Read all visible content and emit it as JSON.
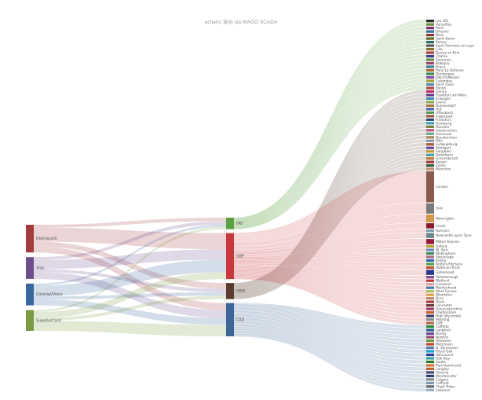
{
  "chart_data": {
    "type": "sankey",
    "title": "echarts 演示 via WAGO SCADA",
    "levels": [
      {
        "name": "source",
        "nodes": [
          {
            "name": "Distinguish",
            "color": "#a23a3e"
          },
          {
            "name": "Visa",
            "color": "#6e4d8c"
          },
          {
            "name": "Colonial/Voice",
            "color": "#39689f"
          },
          {
            "name": "SuperiorCard",
            "color": "#7c9a41"
          }
        ]
      },
      {
        "name": "currency",
        "nodes": [
          {
            "name": "FRF",
            "color": "#5aa13f"
          },
          {
            "name": "GBP",
            "color": "#c9383d"
          },
          {
            "name": "DEM",
            "color": "#5a3b2f"
          },
          {
            "name": "CAD",
            "color": "#3d6698"
          }
        ]
      }
    ],
    "links_to_currency": [
      {
        "source": "Distinguish",
        "target": "FRF",
        "value": 3
      },
      {
        "source": "Distinguish",
        "target": "GBP",
        "value": 14
      },
      {
        "source": "Distinguish",
        "target": "DEM",
        "value": 5
      },
      {
        "source": "Distinguish",
        "target": "CAD",
        "value": 6
      },
      {
        "source": "Visa",
        "target": "FRF",
        "value": 3
      },
      {
        "source": "Visa",
        "target": "GBP",
        "value": 9
      },
      {
        "source": "Visa",
        "target": "DEM",
        "value": 3
      },
      {
        "source": "Visa",
        "target": "CAD",
        "value": 7
      },
      {
        "source": "Colonial/Voice",
        "target": "FRF",
        "value": 2
      },
      {
        "source": "Colonial/Voice",
        "target": "GBP",
        "value": 11
      },
      {
        "source": "Colonial/Voice",
        "target": "DEM",
        "value": 3
      },
      {
        "source": "Colonial/Voice",
        "target": "CAD",
        "value": 6
      },
      {
        "source": "SuperiorCard",
        "target": "FRF",
        "value": 2
      },
      {
        "source": "SuperiorCard",
        "target": "GBP",
        "value": 6
      },
      {
        "source": "SuperiorCard",
        "target": "DEM",
        "value": 3
      },
      {
        "source": "SuperiorCard",
        "target": "CAD",
        "value": 10
      }
    ],
    "cities": {
      "FRF": [
        {
          "name": "Les Ulis",
          "color": "#2b2b2b"
        },
        {
          "name": "Versailles",
          "color": "#6e8a3a"
        },
        {
          "name": "Paris",
          "color": "#7a2f6e"
        },
        {
          "name": "Orleans",
          "color": "#3a6e9a"
        },
        {
          "name": "Blois",
          "color": "#8a3a3a"
        },
        {
          "name": "Saint-Denis",
          "color": "#6a6a2a"
        },
        {
          "name": "Roissy",
          "color": "#2a6a6a"
        },
        {
          "name": "Saint Germain en Laye",
          "color": "#5a5a5a"
        },
        {
          "name": "Lille",
          "color": "#8a6a2a"
        },
        {
          "name": "Boissy en Brie",
          "color": "#b04040"
        },
        {
          "name": "Chatou",
          "color": "#3a3a8a"
        },
        {
          "name": "Suresnes",
          "color": "#6a8a4a"
        },
        {
          "name": "Bobigny",
          "color": "#9a4a6a"
        },
        {
          "name": "Bracy",
          "color": "#4a7a9a"
        },
        {
          "name": "Paris La Defense",
          "color": "#aa6a2a"
        },
        {
          "name": "Dunkerque",
          "color": "#3a8a5a"
        },
        {
          "name": "Illkirch/Necker",
          "color": "#8a4aa0"
        },
        {
          "name": "Colombes",
          "color": "#a0a03a"
        },
        {
          "name": "Saint Ouen",
          "color": "#5a8aaa"
        },
        {
          "name": "Pantin",
          "color": "#aa4a4a"
        }
      ],
      "DEM": [
        {
          "name": "Gervis",
          "color": "#c0306a"
        },
        {
          "name": "Frankfurt am Main",
          "color": "#6a3a8a"
        },
        {
          "name": "Erlangen",
          "color": "#3a8aaa"
        },
        {
          "name": "Isierle",
          "color": "#8aaa4a"
        },
        {
          "name": "Duesseldorf",
          "color": "#aa7a3a"
        },
        {
          "name": "Hof",
          "color": "#4a6aaa"
        },
        {
          "name": "Offenbach",
          "color": "#5a9a5a"
        },
        {
          "name": "Ingolstadt",
          "color": "#9a5a3a"
        },
        {
          "name": "Frankfurt",
          "color": "#2a4a7a"
        },
        {
          "name": "Hamburg",
          "color": "#3aa0c0"
        },
        {
          "name": "Munster",
          "color": "#7a7a3a"
        },
        {
          "name": "Saarbrucken",
          "color": "#c05a8a"
        },
        {
          "name": "Hannover",
          "color": "#6aaa8a"
        },
        {
          "name": "Neunkirchen",
          "color": "#aa8a5a"
        },
        {
          "name": "Köln",
          "color": "#8a9aaa"
        },
        {
          "name": "Ludwigsburg",
          "color": "#aa5a3a"
        },
        {
          "name": "Stuttgart",
          "color": "#6a4aa0"
        },
        {
          "name": "Sangelen",
          "color": "#c0a03a"
        },
        {
          "name": "Paderborn",
          "color": "#4aa0a0"
        },
        {
          "name": "Grevenbroich",
          "color": "#c07a3a"
        },
        {
          "name": "Kassel",
          "color": "#a03a3a"
        },
        {
          "name": "Essen",
          "color": "#3a5a3a"
        },
        {
          "name": "München",
          "color": "#c08a6a"
        }
      ],
      "GBP": [
        {
          "name": "London",
          "color": "#8a5a4a"
        },
        {
          "name": "York",
          "color": "#7a7a7a"
        },
        {
          "name": "Warrington",
          "color": "#d09a4a"
        },
        {
          "name": "Leeds",
          "color": "#8a1a2a"
        },
        {
          "name": "Runcorn",
          "color": "#7a9ab0"
        },
        {
          "name": "Newcastle upon Tyne",
          "color": "#6a8a8a"
        },
        {
          "name": "Milton Keynes",
          "color": "#9a1a3a"
        },
        {
          "name": "Oxford",
          "color": "#b0a02a"
        },
        {
          "name": "W. York",
          "color": "#6a8ac0"
        },
        {
          "name": "Wokingham",
          "color": "#3a8a5a"
        },
        {
          "name": "Stevenage",
          "color": "#aa6a8a"
        },
        {
          "name": "Kirkby",
          "color": "#2a6aaa"
        },
        {
          "name": "Bolton-Hitchens",
          "color": "#4aa04a"
        },
        {
          "name": "Stoke-on-Trent",
          "color": "#c0502a"
        },
        {
          "name": "Gateshead",
          "color": "#2a3a8a"
        },
        {
          "name": "Peterborough",
          "color": "#7a4a9a"
        },
        {
          "name": "Watford",
          "color": "#c03a3a"
        },
        {
          "name": "Liverpool",
          "color": "#e0a0a0"
        },
        {
          "name": "Maidenhead",
          "color": "#4a7aa0"
        },
        {
          "name": "West Sussex",
          "color": "#aac06a"
        },
        {
          "name": "Woodston",
          "color": "#e0a04a"
        },
        {
          "name": "Bury",
          "color": "#c08a6a"
        },
        {
          "name": "Deon",
          "color": "#aa3a3a"
        },
        {
          "name": "Lancaster",
          "color": "#6a3a3a"
        },
        {
          "name": "Gloucestershire",
          "color": "#a03a6a"
        },
        {
          "name": "Cheltenham",
          "color": "#c0602a"
        },
        {
          "name": "High Wycombe",
          "color": "#3a3a6a"
        },
        {
          "name": "Reading",
          "color": "#8a8a8a"
        },
        {
          "name": "Cliff",
          "color": "#b06a4a"
        }
      ],
      "CAD": [
        {
          "name": "Coffeda",
          "color": "#2a8a3a"
        },
        {
          "name": "Langford",
          "color": "#2a5a8a"
        },
        {
          "name": "Haney",
          "color": "#6a4a9a"
        },
        {
          "name": "Newton",
          "color": "#9a4a6a"
        },
        {
          "name": "Shawnee",
          "color": "#6a9a3a"
        },
        {
          "name": "Metchosin",
          "color": "#c04a2a"
        },
        {
          "name": "N. Vancouver",
          "color": "#5a7ab0"
        },
        {
          "name": "Royal Oak",
          "color": "#1aa0d0"
        },
        {
          "name": "Vancouver",
          "color": "#2a3a9a"
        },
        {
          "name": "Oak Bay",
          "color": "#3aa0a0"
        },
        {
          "name": "Sooke",
          "color": "#2a7a2a"
        },
        {
          "name": "Port Hammond",
          "color": "#d07a3a"
        },
        {
          "name": "Langley",
          "color": "#c0602a"
        },
        {
          "name": "Victoria",
          "color": "#4a4a7a"
        },
        {
          "name": "Westminster",
          "color": "#2a3a6a"
        },
        {
          "name": "Calgary",
          "color": "#8a8a8a"
        },
        {
          "name": "Coffeda",
          "color": "#7a9ab0"
        },
        {
          "name": "Chalk Riber",
          "color": "#6a6a6a"
        },
        {
          "name": "Lebanon",
          "color": "#9ab0c0"
        }
      ]
    },
    "city_values": {
      "GBP": {
        "London": 12,
        "York": 4,
        "Warrington": 3,
        "Leeds": 2,
        "Newcastle upon Tyne": 2,
        "Milton Keynes": 2,
        "Gateshead": 2
      }
    }
  }
}
